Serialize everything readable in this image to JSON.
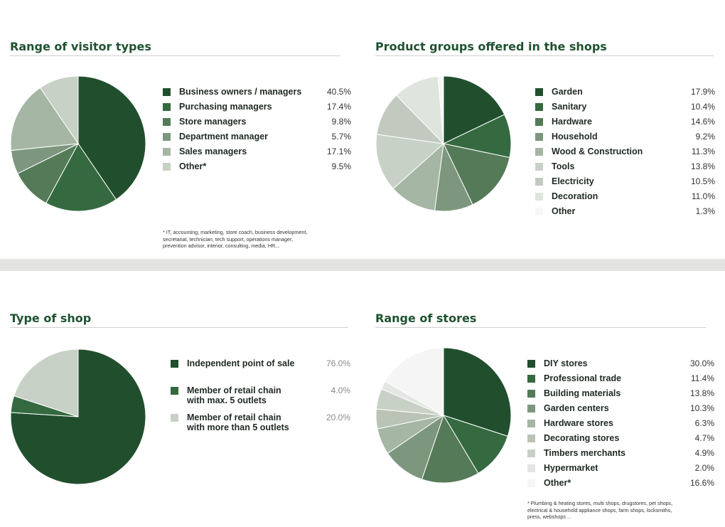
{
  "colors": {
    "title": "#1f5230",
    "band": "#e3e3e1",
    "palette2": [
      "#214f2d",
      "#356a40",
      "#557a58",
      "#7d977e",
      "#a5b7a4",
      "#c8d1c6",
      "#dfe4dd",
      "#f3f3f4",
      "#f6f6f7"
    ]
  },
  "chart_data": [
    {
      "type": "pie",
      "title": "Range of visitor types",
      "categories": [
        "Business owners / managers",
        "Purchasing managers",
        "Store managers",
        "Department manager",
        "Sales managers",
        "Other*"
      ],
      "values": [
        40.5,
        17.4,
        9.8,
        5.7,
        17.1,
        9.5
      ],
      "value_labels": [
        "40.5%",
        "17.4%",
        "9.8%",
        "5.7%",
        "17.1%",
        "9.5%"
      ],
      "colors": [
        "#214f2d",
        "#356a40",
        "#557a58",
        "#7d977e",
        "#a5b7a4",
        "#c8d1c6"
      ],
      "footnote_lines": [
        "* IT, accounting, marketing, store coach, business development,",
        "secretariat, technician, tech support, operations manager,",
        "prevention advisor, interior, consulting, media, HR..."
      ]
    },
    {
      "type": "pie",
      "title": "Product groups offered in the shops",
      "categories": [
        "Garden",
        "Sanitary",
        "Hardware",
        "Household",
        "Wood & Construction",
        "Tools",
        "Electricity",
        "Decoration",
        "Other"
      ],
      "values": [
        17.9,
        10.4,
        14.6,
        9.2,
        11.3,
        13.8,
        10.5,
        11.0,
        1.3
      ],
      "value_labels": [
        "17.9%",
        "10.4%",
        "14.6%",
        "9.2%",
        "11.3%",
        "13.8%",
        "10.5%",
        "11.0%",
        "1.3%"
      ],
      "colors": [
        "#214f2d",
        "#356a40",
        "#557a58",
        "#7d977e",
        "#a5b7a4",
        "#c8d1c6",
        "#c2cabf",
        "#dfe4dd",
        "#f6f6f7"
      ]
    },
    {
      "type": "pie",
      "title": "Type of shop",
      "categories": [
        "Independent point of sale",
        "Member of retail chain with max. 5 outlets",
        "Member of retail chain with more than 5 outlets"
      ],
      "label_lines": [
        [
          "Independent point of sale"
        ],
        [
          "Member of retail chain",
          "with max. 5 outlets"
        ],
        [
          "Member of retail chain",
          "with more than 5 outlets"
        ]
      ],
      "values": [
        76.0,
        4.0,
        20.0
      ],
      "value_labels": [
        "76.0%",
        "4.0%",
        "20.0%"
      ],
      "colors": [
        "#214f2d",
        "#356a40",
        "#c8d1c6"
      ]
    },
    {
      "type": "pie",
      "title": "Range of stores",
      "categories": [
        "DIY stores",
        "Professional trade",
        "Building materials",
        "Garden centers",
        "Hardware stores",
        "Decorating stores",
        "Timbers merchants",
        "Hypermarket",
        "Other*"
      ],
      "values": [
        30.0,
        11.4,
        13.8,
        10.3,
        6.3,
        4.7,
        4.9,
        2.0,
        16.6
      ],
      "value_labels": [
        "30.0%",
        "11.4%",
        "13.8%",
        "10.3%",
        "6.3%",
        "4.7%",
        "4.9%",
        "2.0%",
        "16.6%"
      ],
      "colors": [
        "#214f2d",
        "#356a40",
        "#557a58",
        "#7d977e",
        "#a5b7a4",
        "#b9c4b7",
        "#c8d1c6",
        "#e3e6e2",
        "#f5f5f6"
      ],
      "footnote_lines": [
        "* Plumbing & heating stores, multi shops, drugstores, pet shops,",
        "electrical & household appliance shops, farm shops, locksmiths,",
        "press, webshops ..."
      ]
    }
  ]
}
